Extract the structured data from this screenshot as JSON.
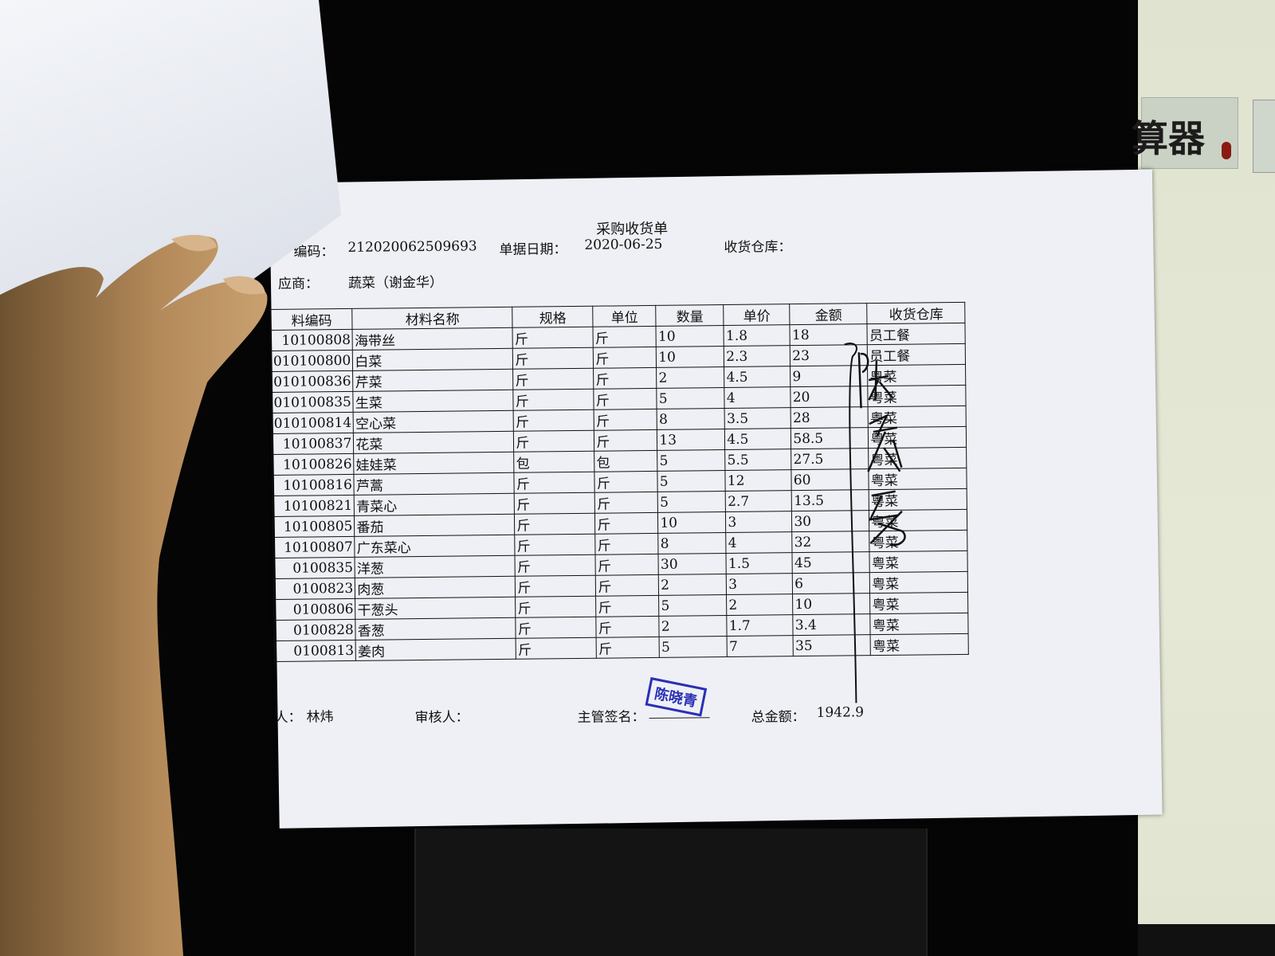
{
  "background_sign": {
    "text": "算器"
  },
  "document": {
    "title": "采购收货单",
    "doc_no_label": "编码：",
    "doc_no": "212020062509693",
    "date_label": "单据日期：",
    "date": "2020-06-25",
    "warehouse_label": "收货仓库：",
    "supplier_label": "应商：",
    "supplier": "蔬菜（谢金华）",
    "table": {
      "headers": [
        "料编码",
        "材料名称",
        "规格",
        "单位",
        "数量",
        "单价",
        "金额",
        "收货仓库"
      ],
      "rows": [
        [
          "10100808",
          "海带丝",
          "斤",
          "斤",
          "10",
          "1.8",
          "18",
          "员工餐"
        ],
        [
          "010100800",
          "白菜",
          "斤",
          "斤",
          "10",
          "2.3",
          "23",
          "员工餐"
        ],
        [
          "010100836",
          "芹菜",
          "斤",
          "斤",
          "2",
          "4.5",
          "9",
          "粤菜"
        ],
        [
          "010100835",
          "生菜",
          "斤",
          "斤",
          "5",
          "4",
          "20",
          "粤菜"
        ],
        [
          "010100814",
          "空心菜",
          "斤",
          "斤",
          "8",
          "3.5",
          "28",
          "粤菜"
        ],
        [
          "10100837",
          "花菜",
          "斤",
          "斤",
          "13",
          "4.5",
          "58.5",
          "粤菜"
        ],
        [
          "10100826",
          "娃娃菜",
          "包",
          "包",
          "5",
          "5.5",
          "27.5",
          "粤菜"
        ],
        [
          "10100816",
          "芦蒿",
          "斤",
          "斤",
          "5",
          "12",
          "60",
          "粤菜"
        ],
        [
          "10100821",
          "青菜心",
          "斤",
          "斤",
          "5",
          "2.7",
          "13.5",
          "粤菜"
        ],
        [
          "10100805",
          "番茄",
          "斤",
          "斤",
          "10",
          "3",
          "30",
          "粤菜"
        ],
        [
          "10100807",
          "广东菜心",
          "斤",
          "斤",
          "8",
          "4",
          "32",
          "粤菜"
        ],
        [
          "0100835",
          "洋葱",
          "斤",
          "斤",
          "30",
          "1.5",
          "45",
          "粤菜"
        ],
        [
          "0100823",
          "肉葱",
          "斤",
          "斤",
          "2",
          "3",
          "6",
          "粤菜"
        ],
        [
          "0100806",
          "干葱头",
          "斤",
          "斤",
          "5",
          "2",
          "10",
          "粤菜"
        ],
        [
          "0100828",
          "香葱",
          "斤",
          "斤",
          "2",
          "1.7",
          "3.4",
          "粤菜"
        ],
        [
          "0100813",
          "姜肉",
          "斤",
          "斤",
          "5",
          "7",
          "35",
          "粤菜"
        ]
      ]
    },
    "footer": {
      "maker_label": "人：",
      "maker": "林炜",
      "reviewer_label": "审核人：",
      "manager_label": "主管签名：",
      "stamp": "陈晓青",
      "total_label": "总金额：",
      "total": "1942.9"
    }
  },
  "colors": {
    "stamp": "#2a2fb5",
    "paper": "#eef0f5",
    "ink": "#111111"
  }
}
